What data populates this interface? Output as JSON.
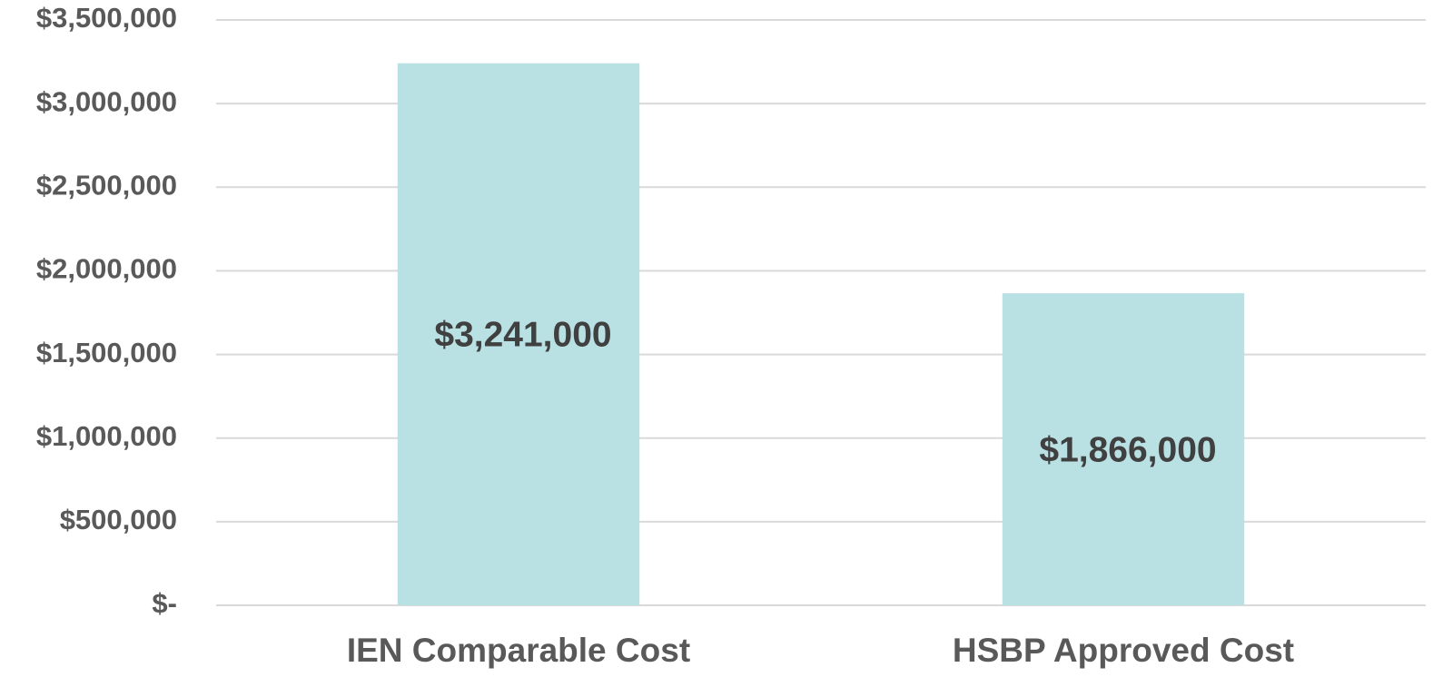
{
  "chart_data": {
    "type": "bar",
    "categories": [
      "IEN Comparable Cost",
      "HSBP Approved Cost"
    ],
    "values": [
      3241000,
      1866000
    ],
    "value_labels": [
      "$3,241,000",
      "$1,866,000"
    ],
    "color": "#b9e0e3",
    "ylim": [
      0,
      3500000
    ],
    "yticks": [
      {
        "value": 0,
        "label": "$-"
      },
      {
        "value": 500000,
        "label": "$500,000"
      },
      {
        "value": 1000000,
        "label": "$1,000,000"
      },
      {
        "value": 1500000,
        "label": "$1,500,000"
      },
      {
        "value": 2000000,
        "label": "$2,000,000"
      },
      {
        "value": 2500000,
        "label": "$2,500,000"
      },
      {
        "value": 3000000,
        "label": "$3,000,000"
      },
      {
        "value": 3500000,
        "label": "$3,500,000"
      }
    ],
    "grid": true
  }
}
